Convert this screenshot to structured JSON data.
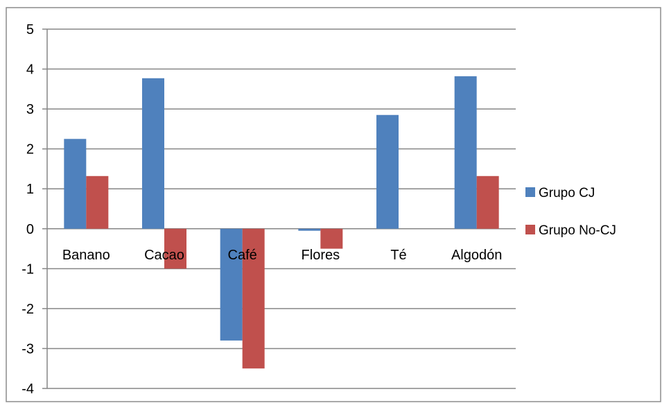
{
  "chart_data": {
    "type": "bar",
    "title": "",
    "xlabel": "",
    "ylabel": "",
    "categories": [
      "Banano",
      "Cacao",
      "Café",
      "Flores",
      "Té",
      "Algodón"
    ],
    "series": [
      {
        "name": "Grupo CJ",
        "color": "#4F81BD",
        "values": [
          2.25,
          3.77,
          -2.8,
          -0.05,
          2.85,
          3.82
        ]
      },
      {
        "name": "Grupo No-CJ",
        "color": "#C0504D",
        "values": [
          1.32,
          -1.0,
          -3.5,
          -0.5,
          0,
          1.32
        ]
      }
    ],
    "ylim": [
      -4,
      5
    ],
    "yticks": [
      "5",
      "4",
      "3",
      "2",
      "1",
      "0",
      "-1",
      "-2",
      "-3",
      "-4"
    ],
    "grid": true,
    "legend_position": "right"
  }
}
